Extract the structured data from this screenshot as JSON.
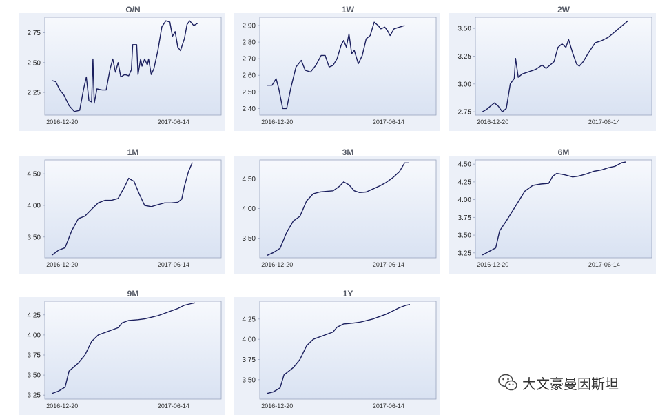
{
  "colors": {
    "line": "#1b1f5e",
    "plot_top": "#f7f9fd",
    "plot_bottom": "#d9e2f2",
    "frame": "#98a3bd",
    "panel_bg": "#ecf0f8"
  },
  "watermark": {
    "text": "大文豪曼因斯坦",
    "icon": "wechat-icon"
  },
  "chart_data": [
    {
      "type": "line",
      "title": "O/N",
      "xticks": [
        "2016-12-20",
        "2017-06-14"
      ],
      "yticks": [
        2.25,
        2.5,
        2.75
      ],
      "ylim": [
        2.06,
        2.88
      ],
      "points": [
        [
          0,
          2.35
        ],
        [
          0.03,
          2.34
        ],
        [
          0.06,
          2.27
        ],
        [
          0.09,
          2.23
        ],
        [
          0.13,
          2.14
        ],
        [
          0.17,
          2.09
        ],
        [
          0.21,
          2.1
        ],
        [
          0.24,
          2.28
        ],
        [
          0.26,
          2.38
        ],
        [
          0.28,
          2.18
        ],
        [
          0.3,
          2.17
        ],
        [
          0.31,
          2.53
        ],
        [
          0.32,
          2.16
        ],
        [
          0.34,
          2.28
        ],
        [
          0.38,
          2.27
        ],
        [
          0.41,
          2.27
        ],
        [
          0.44,
          2.45
        ],
        [
          0.46,
          2.53
        ],
        [
          0.48,
          2.42
        ],
        [
          0.5,
          2.5
        ],
        [
          0.52,
          2.38
        ],
        [
          0.55,
          2.4
        ],
        [
          0.58,
          2.39
        ],
        [
          0.6,
          2.44
        ],
        [
          0.61,
          2.65
        ],
        [
          0.64,
          2.65
        ],
        [
          0.65,
          2.4
        ],
        [
          0.67,
          2.53
        ],
        [
          0.68,
          2.47
        ],
        [
          0.7,
          2.53
        ],
        [
          0.72,
          2.48
        ],
        [
          0.73,
          2.53
        ],
        [
          0.75,
          2.4
        ],
        [
          0.77,
          2.45
        ],
        [
          0.8,
          2.6
        ],
        [
          0.83,
          2.8
        ],
        [
          0.86,
          2.85
        ],
        [
          0.89,
          2.84
        ],
        [
          0.91,
          2.72
        ],
        [
          0.93,
          2.76
        ],
        [
          0.95,
          2.63
        ],
        [
          0.97,
          2.6
        ],
        [
          1.0,
          2.7
        ],
        [
          1.02,
          2.82
        ],
        [
          1.04,
          2.85
        ],
        [
          1.07,
          2.81
        ],
        [
          1.1,
          2.83
        ]
      ]
    },
    {
      "type": "line",
      "title": "1W",
      "xticks": [
        "2016-12-20",
        "2017-06-14"
      ],
      "yticks": [
        2.4,
        2.5,
        2.6,
        2.7,
        2.8,
        2.9
      ],
      "ylim": [
        2.36,
        2.95
      ],
      "points": [
        [
          0,
          2.54
        ],
        [
          0.04,
          2.54
        ],
        [
          0.07,
          2.58
        ],
        [
          0.09,
          2.52
        ],
        [
          0.12,
          2.4
        ],
        [
          0.15,
          2.4
        ],
        [
          0.18,
          2.52
        ],
        [
          0.22,
          2.65
        ],
        [
          0.26,
          2.69
        ],
        [
          0.29,
          2.63
        ],
        [
          0.33,
          2.62
        ],
        [
          0.37,
          2.66
        ],
        [
          0.41,
          2.72
        ],
        [
          0.44,
          2.72
        ],
        [
          0.47,
          2.65
        ],
        [
          0.5,
          2.66
        ],
        [
          0.53,
          2.7
        ],
        [
          0.56,
          2.78
        ],
        [
          0.58,
          2.81
        ],
        [
          0.6,
          2.77
        ],
        [
          0.62,
          2.85
        ],
        [
          0.64,
          2.73
        ],
        [
          0.66,
          2.75
        ],
        [
          0.69,
          2.67
        ],
        [
          0.72,
          2.72
        ],
        [
          0.75,
          2.82
        ],
        [
          0.78,
          2.84
        ],
        [
          0.81,
          2.92
        ],
        [
          0.84,
          2.9
        ],
        [
          0.86,
          2.88
        ],
        [
          0.89,
          2.89
        ],
        [
          0.91,
          2.87
        ],
        [
          0.93,
          2.84
        ],
        [
          0.96,
          2.88
        ],
        [
          1.0,
          2.89
        ],
        [
          1.04,
          2.9
        ]
      ]
    },
    {
      "type": "line",
      "title": "2W",
      "xticks": [
        "2016-12-20",
        "2017-06-14"
      ],
      "yticks": [
        2.75,
        3.0,
        3.25,
        3.5
      ],
      "ylim": [
        2.72,
        3.6
      ],
      "points": [
        [
          0,
          2.75
        ],
        [
          0.03,
          2.77
        ],
        [
          0.06,
          2.8
        ],
        [
          0.09,
          2.83
        ],
        [
          0.12,
          2.8
        ],
        [
          0.15,
          2.75
        ],
        [
          0.18,
          2.78
        ],
        [
          0.21,
          3.0
        ],
        [
          0.24,
          3.05
        ],
        [
          0.25,
          3.23
        ],
        [
          0.27,
          3.06
        ],
        [
          0.3,
          3.09
        ],
        [
          0.35,
          3.11
        ],
        [
          0.4,
          3.13
        ],
        [
          0.45,
          3.17
        ],
        [
          0.48,
          3.14
        ],
        [
          0.51,
          3.17
        ],
        [
          0.54,
          3.2
        ],
        [
          0.57,
          3.33
        ],
        [
          0.6,
          3.36
        ],
        [
          0.63,
          3.33
        ],
        [
          0.65,
          3.4
        ],
        [
          0.68,
          3.28
        ],
        [
          0.71,
          3.18
        ],
        [
          0.73,
          3.16
        ],
        [
          0.76,
          3.2
        ],
        [
          0.8,
          3.28
        ],
        [
          0.85,
          3.37
        ],
        [
          0.9,
          3.39
        ],
        [
          0.95,
          3.42
        ],
        [
          1.0,
          3.47
        ],
        [
          1.05,
          3.52
        ],
        [
          1.1,
          3.57
        ]
      ]
    },
    {
      "type": "line",
      "title": "1M",
      "xticks": [
        "2016-12-20",
        "2017-06-14"
      ],
      "yticks": [
        3.5,
        4.0,
        4.5
      ],
      "ylim": [
        3.17,
        4.72
      ],
      "points": [
        [
          0,
          3.21
        ],
        [
          0.05,
          3.29
        ],
        [
          0.1,
          3.33
        ],
        [
          0.15,
          3.6
        ],
        [
          0.2,
          3.79
        ],
        [
          0.25,
          3.83
        ],
        [
          0.3,
          3.94
        ],
        [
          0.35,
          4.04
        ],
        [
          0.4,
          4.08
        ],
        [
          0.45,
          4.08
        ],
        [
          0.5,
          4.11
        ],
        [
          0.55,
          4.3
        ],
        [
          0.58,
          4.43
        ],
        [
          0.62,
          4.38
        ],
        [
          0.66,
          4.18
        ],
        [
          0.7,
          4.0
        ],
        [
          0.75,
          3.98
        ],
        [
          0.8,
          4.01
        ],
        [
          0.85,
          4.04
        ],
        [
          0.9,
          4.04
        ],
        [
          0.95,
          4.05
        ],
        [
          0.98,
          4.1
        ],
        [
          1.0,
          4.3
        ],
        [
          1.03,
          4.53
        ],
        [
          1.06,
          4.68
        ]
      ]
    },
    {
      "type": "line",
      "title": "3M",
      "xticks": [
        "2016-12-20",
        "2017-06-14"
      ],
      "yticks": [
        3.5,
        4.0,
        4.5
      ],
      "ylim": [
        3.17,
        4.82
      ],
      "points": [
        [
          0,
          3.21
        ],
        [
          0.05,
          3.26
        ],
        [
          0.1,
          3.33
        ],
        [
          0.15,
          3.6
        ],
        [
          0.2,
          3.79
        ],
        [
          0.25,
          3.87
        ],
        [
          0.3,
          4.13
        ],
        [
          0.35,
          4.25
        ],
        [
          0.4,
          4.28
        ],
        [
          0.45,
          4.29
        ],
        [
          0.5,
          4.3
        ],
        [
          0.55,
          4.38
        ],
        [
          0.58,
          4.45
        ],
        [
          0.62,
          4.4
        ],
        [
          0.66,
          4.3
        ],
        [
          0.7,
          4.27
        ],
        [
          0.75,
          4.28
        ],
        [
          0.8,
          4.33
        ],
        [
          0.85,
          4.38
        ],
        [
          0.9,
          4.44
        ],
        [
          0.95,
          4.52
        ],
        [
          1.0,
          4.62
        ],
        [
          1.04,
          4.77
        ],
        [
          1.07,
          4.77
        ]
      ]
    },
    {
      "type": "line",
      "title": "6M",
      "xticks": [
        "2016-12-20",
        "2017-06-14"
      ],
      "yticks": [
        3.25,
        3.5,
        3.75,
        4.0,
        4.25,
        4.5
      ],
      "ylim": [
        3.18,
        4.56
      ],
      "points": [
        [
          0,
          3.22
        ],
        [
          0.05,
          3.27
        ],
        [
          0.1,
          3.32
        ],
        [
          0.13,
          3.56
        ],
        [
          0.18,
          3.7
        ],
        [
          0.22,
          3.82
        ],
        [
          0.27,
          3.97
        ],
        [
          0.32,
          4.12
        ],
        [
          0.38,
          4.2
        ],
        [
          0.44,
          4.22
        ],
        [
          0.5,
          4.23
        ],
        [
          0.53,
          4.33
        ],
        [
          0.56,
          4.37
        ],
        [
          0.62,
          4.35
        ],
        [
          0.68,
          4.32
        ],
        [
          0.72,
          4.33
        ],
        [
          0.78,
          4.36
        ],
        [
          0.84,
          4.4
        ],
        [
          0.9,
          4.42
        ],
        [
          0.95,
          4.45
        ],
        [
          1.0,
          4.47
        ],
        [
          1.05,
          4.52
        ],
        [
          1.08,
          4.53
        ]
      ]
    },
    {
      "type": "line",
      "title": "9M",
      "xticks": [
        "2016-12-20",
        "2017-06-14"
      ],
      "yticks": [
        3.25,
        3.5,
        3.75,
        4.0,
        4.25
      ],
      "ylim": [
        3.2,
        4.42
      ],
      "points": [
        [
          0,
          3.27
        ],
        [
          0.05,
          3.3
        ],
        [
          0.1,
          3.35
        ],
        [
          0.13,
          3.55
        ],
        [
          0.2,
          3.65
        ],
        [
          0.25,
          3.75
        ],
        [
          0.3,
          3.92
        ],
        [
          0.35,
          4.0
        ],
        [
          0.4,
          4.03
        ],
        [
          0.45,
          4.06
        ],
        [
          0.5,
          4.09
        ],
        [
          0.53,
          4.15
        ],
        [
          0.58,
          4.18
        ],
        [
          0.65,
          4.19
        ],
        [
          0.7,
          4.2
        ],
        [
          0.75,
          4.22
        ],
        [
          0.8,
          4.24
        ],
        [
          0.85,
          4.27
        ],
        [
          0.9,
          4.3
        ],
        [
          0.95,
          4.33
        ],
        [
          1.0,
          4.37
        ],
        [
          1.05,
          4.39
        ],
        [
          1.08,
          4.4
        ]
      ]
    },
    {
      "type": "line",
      "title": "1Y",
      "xticks": [
        "2016-12-20",
        "2017-06-14"
      ],
      "yticks": [
        3.5,
        3.75,
        4.0,
        4.25
      ],
      "ylim": [
        3.26,
        4.47
      ],
      "points": [
        [
          0,
          3.33
        ],
        [
          0.05,
          3.35
        ],
        [
          0.1,
          3.4
        ],
        [
          0.13,
          3.56
        ],
        [
          0.2,
          3.65
        ],
        [
          0.25,
          3.75
        ],
        [
          0.3,
          3.92
        ],
        [
          0.35,
          4.0
        ],
        [
          0.4,
          4.03
        ],
        [
          0.45,
          4.06
        ],
        [
          0.5,
          4.09
        ],
        [
          0.53,
          4.15
        ],
        [
          0.58,
          4.19
        ],
        [
          0.65,
          4.2
        ],
        [
          0.7,
          4.21
        ],
        [
          0.75,
          4.23
        ],
        [
          0.8,
          4.25
        ],
        [
          0.85,
          4.28
        ],
        [
          0.9,
          4.31
        ],
        [
          0.95,
          4.35
        ],
        [
          1.0,
          4.39
        ],
        [
          1.05,
          4.42
        ],
        [
          1.08,
          4.43
        ]
      ]
    }
  ]
}
